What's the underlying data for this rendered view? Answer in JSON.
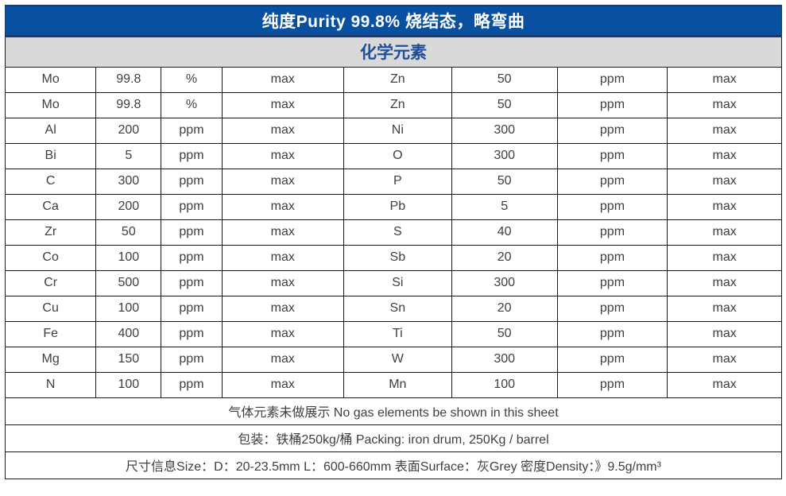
{
  "header": {
    "title": "纯度Purity 99.8%  烧结态，略弯曲"
  },
  "section": {
    "title": "化学元素"
  },
  "table": {
    "column_roles": [
      "element",
      "value",
      "unit",
      "limit",
      "element",
      "value",
      "unit",
      "limit"
    ],
    "rows": [
      [
        "Mo",
        "99.8",
        "%",
        "max",
        "Zn",
        "50",
        "ppm",
        "max"
      ],
      [
        "Mo",
        "99.8",
        "%",
        "max",
        "Zn",
        "50",
        "ppm",
        "max"
      ],
      [
        "Al",
        "200",
        "ppm",
        "max",
        "Ni",
        "300",
        "ppm",
        "max"
      ],
      [
        "Bi",
        "5",
        "ppm",
        "max",
        "O",
        "300",
        "ppm",
        "max"
      ],
      [
        "C",
        "300",
        "ppm",
        "max",
        "P",
        "50",
        "ppm",
        "max"
      ],
      [
        "Ca",
        "200",
        "ppm",
        "max",
        "Pb",
        "5",
        "ppm",
        "max"
      ],
      [
        "Zr",
        "50",
        "ppm",
        "max",
        "S",
        "40",
        "ppm",
        "max"
      ],
      [
        "Co",
        "100",
        "ppm",
        "max",
        "Sb",
        "20",
        "ppm",
        "max"
      ],
      [
        "Cr",
        "500",
        "ppm",
        "max",
        "Si",
        "300",
        "ppm",
        "max"
      ],
      [
        "Cu",
        "100",
        "ppm",
        "max",
        "Sn",
        "20",
        "ppm",
        "max"
      ],
      [
        "Fe",
        "400",
        "ppm",
        "max",
        "Ti",
        "50",
        "ppm",
        "max"
      ],
      [
        "Mg",
        "150",
        "ppm",
        "max",
        "W",
        "300",
        "ppm",
        "max"
      ],
      [
        "N",
        "100",
        "ppm",
        "max",
        "Mn",
        "100",
        "ppm",
        "max"
      ]
    ]
  },
  "footer": {
    "gas_note": "气体元素未做展示  No gas elements be shown in this sheet",
    "packing": "包装：铁桶250kg/桶  Packing: iron drum, 250Kg / barrel",
    "size_info": "尺寸信息Size：D：20-23.5mm  L：600-660mm   表面Surface：灰Grey   密度Density：》9.5g/mm³"
  },
  "colors": {
    "header_bg": "#0A50A0",
    "header_text": "#FFFFFF",
    "header_border": "#1F3864",
    "section_bg": "#D9D9D9",
    "section_text": "#1F4E9C",
    "body_text": "#3F3F3F",
    "grid_border": "#1A1A1A",
    "page_bg": "#FFFFFF"
  }
}
